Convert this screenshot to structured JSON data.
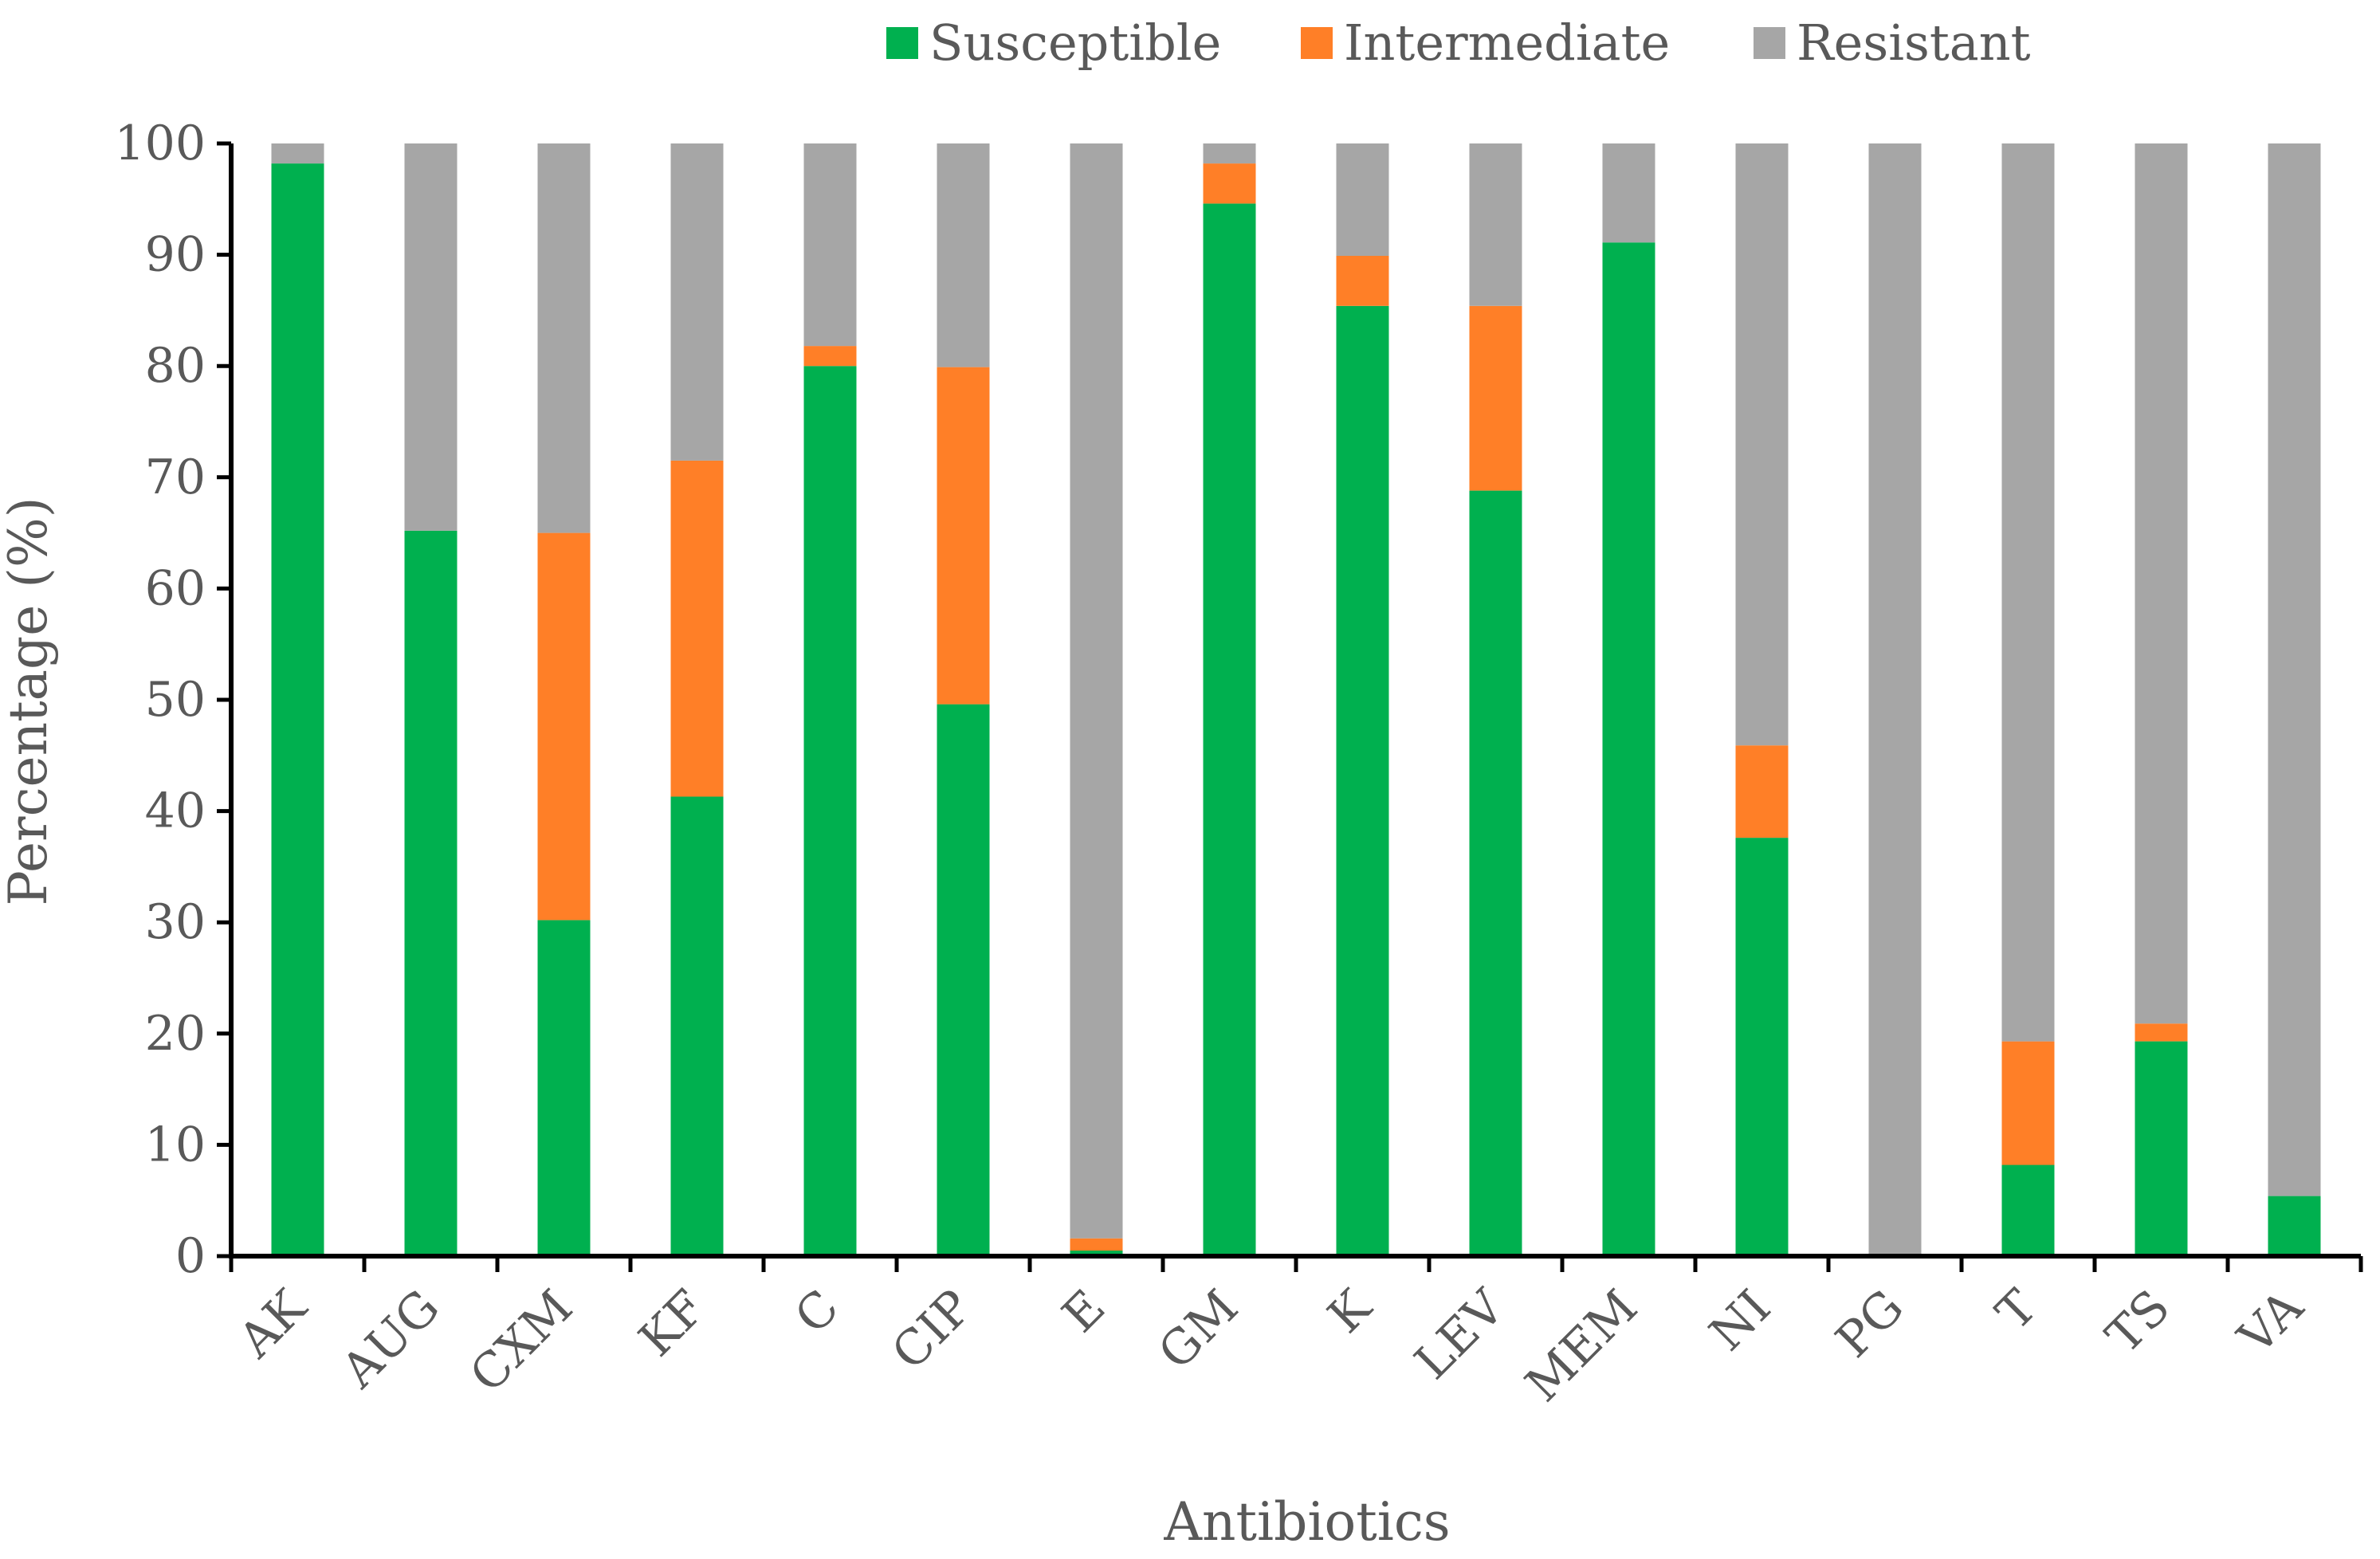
{
  "chart_data": {
    "type": "bar",
    "stacked": true,
    "categories": [
      "AK",
      "AUG",
      "CXM",
      "KF",
      "C",
      "CIP",
      "E",
      "GM",
      "K",
      "LEV",
      "MEM",
      "NI",
      "PG",
      "T",
      "TS",
      "VA"
    ],
    "series": [
      {
        "name": "Susceptible",
        "color": "#00b04f",
        "values": [
          98.2,
          65.2,
          30.2,
          41.3,
          80,
          49.6,
          0.5,
          94.6,
          85.4,
          68.8,
          91.1,
          37.6,
          0,
          8.2,
          19.3,
          5.4
        ]
      },
      {
        "name": "Intermediate",
        "color": "#ff7f27",
        "values": [
          0,
          0,
          34.8,
          30.2,
          1.8,
          30.3,
          1.1,
          3.6,
          4.5,
          16.6,
          0,
          8.3,
          0,
          11.1,
          1.6,
          0
        ]
      },
      {
        "name": "Resistant",
        "color": "#a6a6a6",
        "values": [
          1.8,
          34.8,
          35,
          28.5,
          18.2,
          20.1,
          98.4,
          1.8,
          10.1,
          14.6,
          8.9,
          54.1,
          100,
          80.7,
          79.1,
          94.6
        ]
      }
    ],
    "ylim": [
      0,
      100
    ],
    "yticks": [
      0,
      10,
      20,
      30,
      40,
      50,
      60,
      70,
      80,
      90,
      100
    ],
    "xlabel": "Antibiotics",
    "ylabel": "Percentage (%)",
    "title": "",
    "legend_position": "top-center",
    "grid": false
  }
}
